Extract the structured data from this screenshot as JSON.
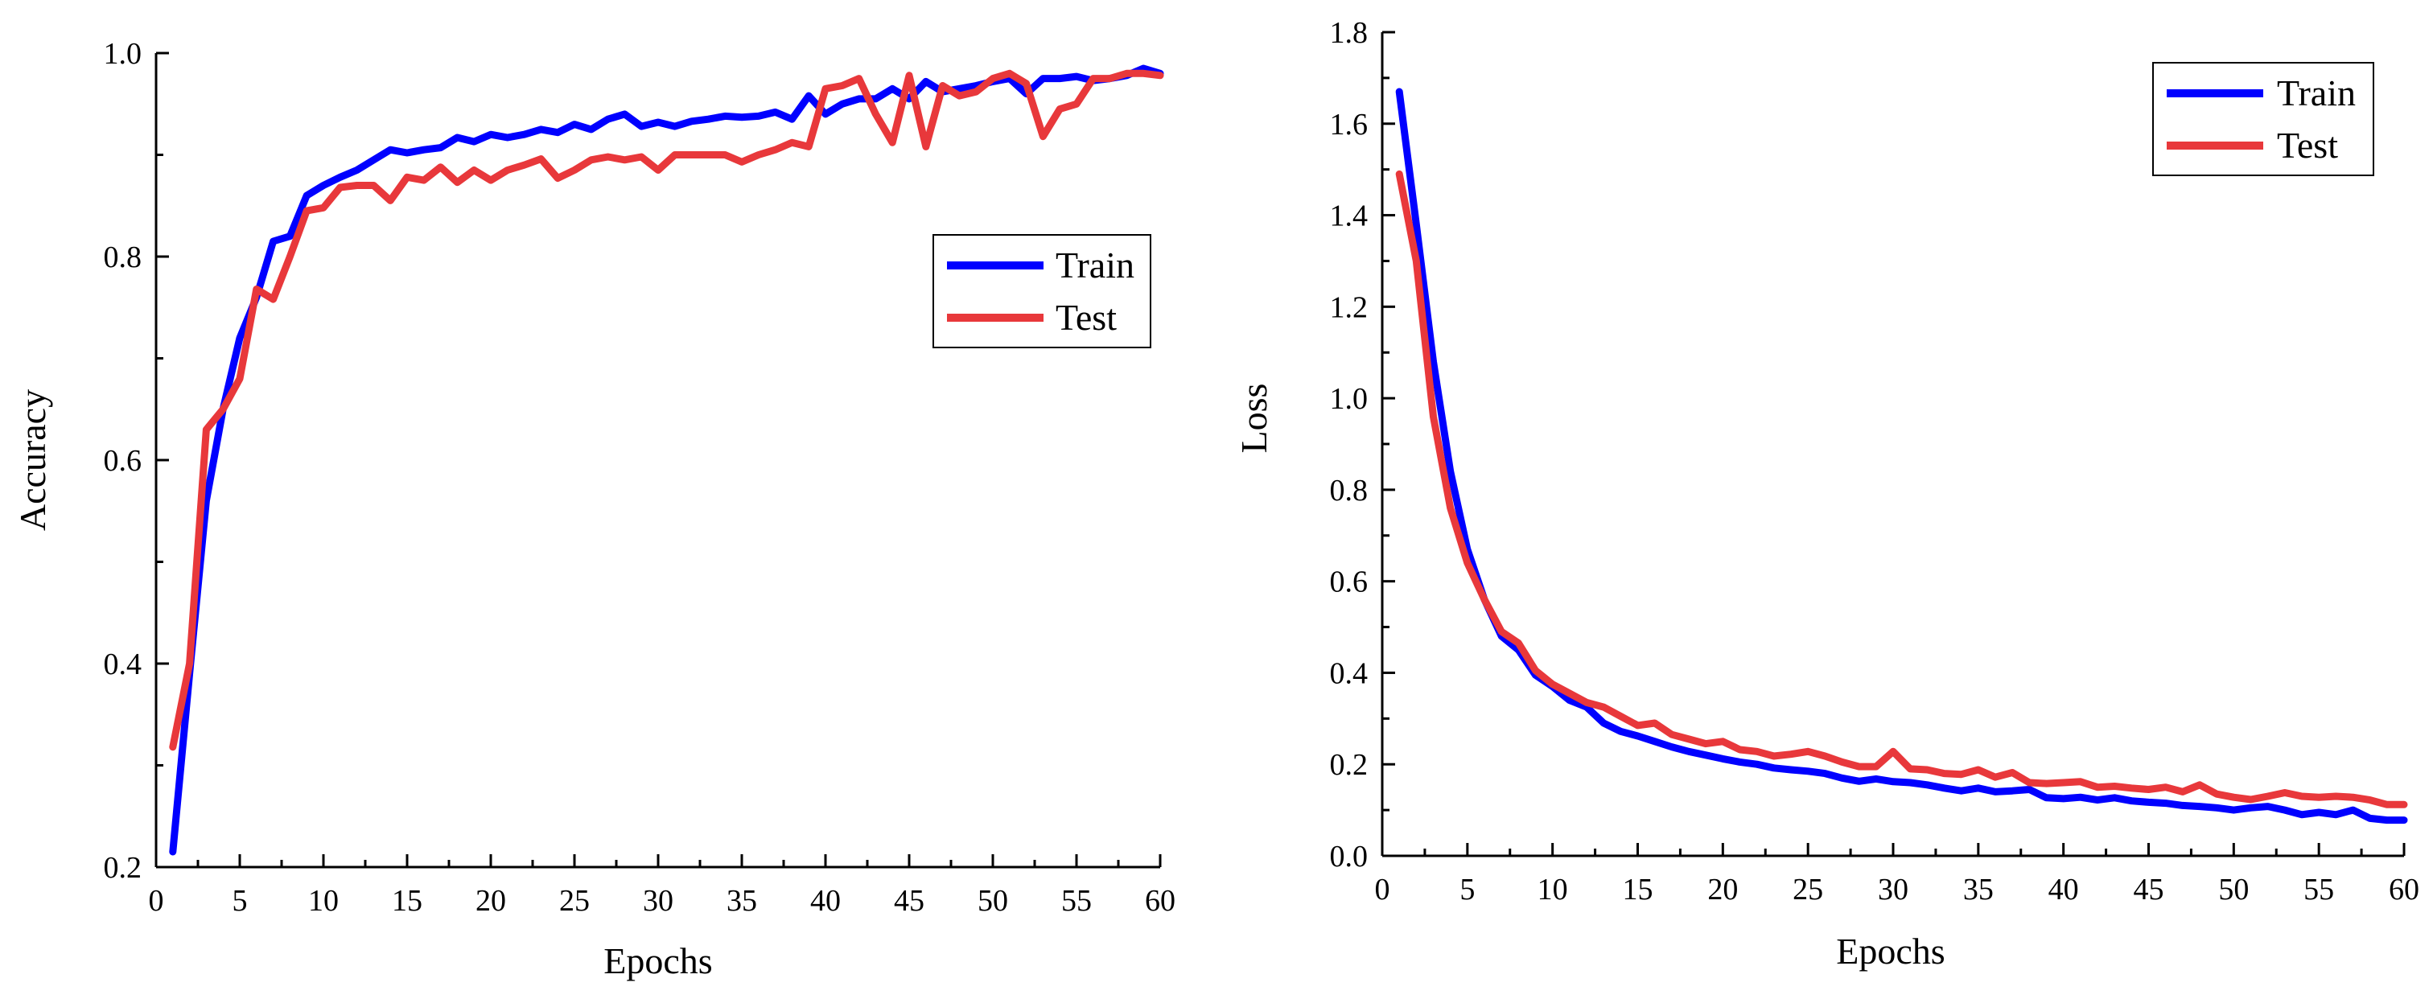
{
  "chart_data": [
    {
      "type": "line",
      "xlabel": "Epochs",
      "ylabel": "Accuracy",
      "xlim": [
        0,
        60
      ],
      "ylim": [
        0.2,
        1.0
      ],
      "xticks": [
        0,
        5,
        10,
        15,
        20,
        25,
        30,
        35,
        40,
        45,
        50,
        55,
        60
      ],
      "xtick_labels": [
        "0",
        "5",
        "10",
        "15",
        "20",
        "25",
        "30",
        "35",
        "40",
        "45",
        "50",
        "55",
        "60"
      ],
      "yticks": [
        0.2,
        0.4,
        0.6,
        0.8,
        1.0
      ],
      "ytick_labels": [
        "0.2",
        "0.4",
        "0.6",
        "0.8",
        "1.0"
      ],
      "legend_position": "right-middle",
      "x": [
        1,
        2,
        3,
        4,
        5,
        6,
        7,
        8,
        9,
        10,
        11,
        12,
        13,
        14,
        15,
        16,
        17,
        18,
        19,
        20,
        21,
        22,
        23,
        24,
        25,
        26,
        27,
        28,
        29,
        30,
        31,
        32,
        33,
        34,
        35,
        36,
        37,
        38,
        39,
        40,
        41,
        42,
        43,
        44,
        45,
        46,
        47,
        48,
        49,
        50,
        51,
        52,
        53,
        54,
        55,
        56,
        57,
        58,
        59,
        60
      ],
      "series": [
        {
          "name": "Train",
          "color": "#0000ff",
          "values": [
            0.215,
            0.39,
            0.56,
            0.65,
            0.72,
            0.76,
            0.815,
            0.82,
            0.86,
            0.87,
            0.878,
            0.885,
            0.895,
            0.905,
            0.902,
            0.905,
            0.907,
            0.917,
            0.913,
            0.92,
            0.917,
            0.92,
            0.925,
            0.922,
            0.93,
            0.925,
            0.935,
            0.94,
            0.928,
            0.932,
            0.928,
            0.933,
            0.935,
            0.938,
            0.937,
            0.938,
            0.942,
            0.935,
            0.958,
            0.94,
            0.95,
            0.955,
            0.955,
            0.965,
            0.955,
            0.972,
            0.962,
            0.965,
            0.968,
            0.972,
            0.975,
            0.96,
            0.975,
            0.975,
            0.977,
            0.973,
            0.975,
            0.978,
            0.985,
            0.98
          ]
        },
        {
          "name": "Test",
          "color": "#e8383b",
          "values": [
            0.318,
            0.4,
            0.63,
            0.65,
            0.68,
            0.768,
            0.758,
            0.8,
            0.845,
            0.848,
            0.868,
            0.87,
            0.87,
            0.855,
            0.878,
            0.875,
            0.888,
            0.873,
            0.885,
            0.875,
            0.885,
            0.89,
            0.896,
            0.877,
            0.885,
            0.895,
            0.898,
            0.895,
            0.898,
            0.885,
            0.9,
            0.9,
            0.9,
            0.9,
            0.893,
            0.9,
            0.905,
            0.912,
            0.908,
            0.965,
            0.968,
            0.975,
            0.94,
            0.912,
            0.978,
            0.908,
            0.968,
            0.958,
            0.962,
            0.975,
            0.98,
            0.97,
            0.918,
            0.945,
            0.95,
            0.975,
            0.975,
            0.98,
            0.98,
            0.978
          ]
        }
      ]
    },
    {
      "type": "line",
      "xlabel": "Epochs",
      "ylabel": "Loss",
      "xlim": [
        0,
        60
      ],
      "ylim": [
        0.0,
        1.8
      ],
      "xticks": [
        0,
        5,
        10,
        15,
        20,
        25,
        30,
        35,
        40,
        45,
        50,
        55,
        60
      ],
      "xtick_labels": [
        "0",
        "5",
        "10",
        "15",
        "20",
        "25",
        "30",
        "35",
        "40",
        "45",
        "50",
        "55",
        "60"
      ],
      "yticks": [
        0.0,
        0.2,
        0.4,
        0.6,
        0.8,
        1.0,
        1.2,
        1.4,
        1.6,
        1.8
      ],
      "ytick_labels": [
        "0.0",
        "0.2",
        "0.4",
        "0.6",
        "0.8",
        "1.0",
        "1.2",
        "1.4",
        "1.6",
        "1.8"
      ],
      "legend_position": "top-right",
      "x": [
        1,
        2,
        3,
        4,
        5,
        6,
        7,
        8,
        9,
        10,
        11,
        12,
        13,
        14,
        15,
        16,
        17,
        18,
        19,
        20,
        21,
        22,
        23,
        24,
        25,
        26,
        27,
        28,
        29,
        30,
        31,
        32,
        33,
        34,
        35,
        36,
        37,
        38,
        39,
        40,
        41,
        42,
        43,
        44,
        45,
        46,
        47,
        48,
        49,
        50,
        51,
        52,
        53,
        54,
        55,
        56,
        57,
        58,
        59,
        60
      ],
      "series": [
        {
          "name": "Train",
          "color": "#0000ff",
          "values": [
            1.67,
            1.38,
            1.08,
            0.84,
            0.67,
            0.56,
            0.48,
            0.45,
            0.395,
            0.37,
            0.34,
            0.325,
            0.29,
            0.272,
            0.262,
            0.25,
            0.238,
            0.228,
            0.22,
            0.212,
            0.205,
            0.2,
            0.192,
            0.188,
            0.185,
            0.18,
            0.17,
            0.163,
            0.168,
            0.162,
            0.16,
            0.155,
            0.148,
            0.142,
            0.148,
            0.14,
            0.142,
            0.145,
            0.127,
            0.125,
            0.128,
            0.122,
            0.127,
            0.12,
            0.117,
            0.115,
            0.11,
            0.108,
            0.105,
            0.1,
            0.105,
            0.108,
            0.1,
            0.09,
            0.095,
            0.09,
            0.1,
            0.082,
            0.078,
            0.078
          ]
        },
        {
          "name": "Test",
          "color": "#e8383b",
          "values": [
            1.49,
            1.3,
            0.96,
            0.76,
            0.64,
            0.56,
            0.49,
            0.465,
            0.405,
            0.375,
            0.355,
            0.335,
            0.325,
            0.305,
            0.285,
            0.29,
            0.265,
            0.255,
            0.245,
            0.25,
            0.232,
            0.228,
            0.218,
            0.222,
            0.228,
            0.218,
            0.205,
            0.195,
            0.195,
            0.228,
            0.19,
            0.188,
            0.18,
            0.178,
            0.188,
            0.172,
            0.182,
            0.16,
            0.158,
            0.16,
            0.162,
            0.15,
            0.152,
            0.148,
            0.145,
            0.15,
            0.14,
            0.155,
            0.135,
            0.128,
            0.123,
            0.13,
            0.138,
            0.13,
            0.128,
            0.13,
            0.128,
            0.122,
            0.112,
            0.112
          ]
        }
      ]
    }
  ]
}
